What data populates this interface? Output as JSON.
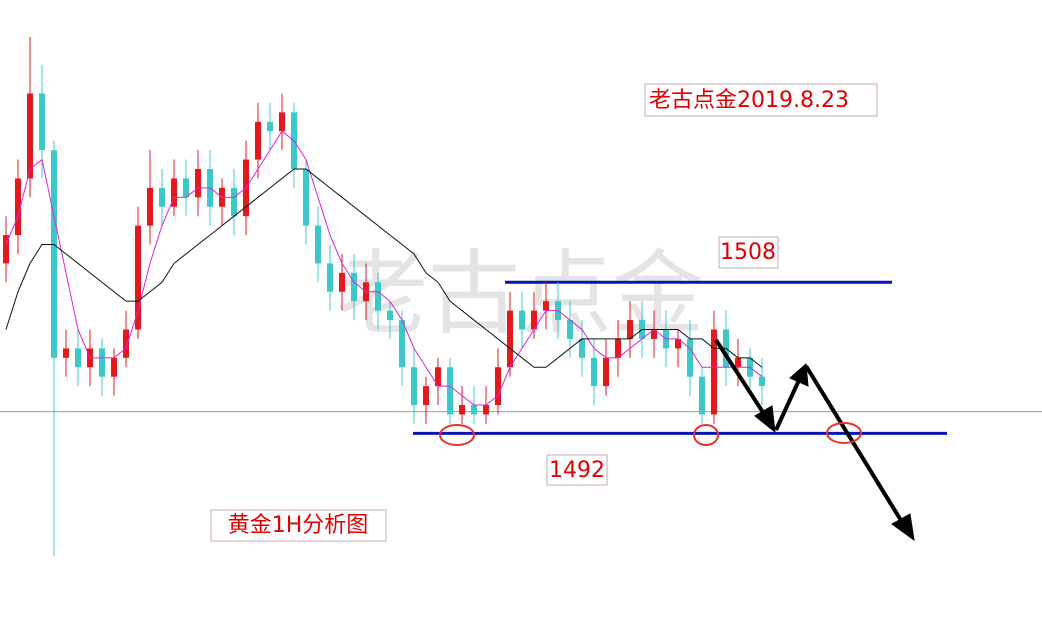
{
  "chart_data": {
    "type": "candlestick",
    "title": "黄金1H分析图",
    "annotations": [
      "老古点金2019.8.23"
    ],
    "watermark": "老古点金",
    "ylim": [
      1471.7,
      1537.9
    ],
    "up_color": "#e31a1c",
    "down_color": "#3cc8c8",
    "open": [
      1510,
      1513,
      1519,
      1528,
      1522,
      1500,
      1501,
      1499,
      1501,
      1498,
      1500,
      1503,
      1514,
      1518,
      1516,
      1519,
      1517,
      1520,
      1516,
      1518,
      1515,
      1521,
      1525,
      1524,
      1526,
      1520,
      1514,
      1510,
      1507,
      1509,
      1506,
      1508,
      1505,
      1504,
      1499,
      1495,
      1497,
      1499,
      1494,
      1495,
      1494,
      1495,
      1499,
      1505,
      1503,
      1505,
      1506,
      1504,
      1502,
      1500,
      1497,
      1500,
      1502,
      1504,
      1502,
      1503,
      1501,
      1502,
      1498,
      1494,
      1503,
      1499,
      1500,
      1498
    ],
    "high": [
      1515,
      1521,
      1534,
      1531,
      1523,
      1503,
      1503,
      1503,
      1502,
      1501,
      1505,
      1516,
      1522,
      1520,
      1521,
      1521,
      1522,
      1522,
      1519,
      1520,
      1523,
      1527,
      1527,
      1528,
      1527,
      1521,
      1516,
      1512,
      1511,
      1511,
      1510,
      1509,
      1506,
      1505,
      1501,
      1498,
      1500,
      1500,
      1497,
      1497,
      1497,
      1501,
      1507,
      1507,
      1507,
      1508,
      1508,
      1506,
      1504,
      1502,
      1502,
      1504,
      1506,
      1506,
      1505,
      1505,
      1503,
      1504,
      1499,
      1505,
      1505,
      1502,
      1501,
      1500
    ],
    "low": [
      1508,
      1511,
      1517,
      1519,
      1479,
      1498,
      1497,
      1497,
      1496,
      1496,
      1499,
      1502,
      1512,
      1514,
      1515,
      1515,
      1515,
      1514,
      1514,
      1513,
      1513,
      1519,
      1522,
      1522,
      1518,
      1512,
      1508,
      1505,
      1505,
      1504,
      1504,
      1503,
      1502,
      1497,
      1493,
      1493,
      1495,
      1493,
      1493,
      1493,
      1493,
      1494,
      1498,
      1501,
      1502,
      1503,
      1502,
      1500,
      1498,
      1495,
      1496,
      1498,
      1500,
      1500,
      1500,
      1499,
      1499,
      1496,
      1493,
      1493,
      1497,
      1497,
      1496,
      1495
    ],
    "close": [
      1513,
      1519,
      1528,
      1522,
      1500,
      1501,
      1499,
      1501,
      1498,
      1500,
      1503,
      1514,
      1518,
      1516,
      1519,
      1517,
      1520,
      1516,
      1518,
      1515,
      1521,
      1525,
      1524,
      1526,
      1520,
      1514,
      1510,
      1507,
      1509,
      1506,
      1508,
      1505,
      1504,
      1499,
      1495,
      1497,
      1499,
      1494,
      1495,
      1494,
      1495,
      1499,
      1505,
      1503,
      1505,
      1506,
      1504,
      1502,
      1500,
      1497,
      1500,
      1502,
      1504,
      1502,
      1503,
      1501,
      1502,
      1498,
      1494,
      1503,
      1499,
      1500,
      1498,
      1497
    ],
    "series": [
      {
        "color": "#e020e0",
        "values": [
          1512,
          1515,
          1520,
          1521,
          1515,
          1509,
          1503,
          1500,
          1500,
          1500,
          1501,
          1505,
          1510,
          1514,
          1517,
          1517,
          1518,
          1518,
          1517,
          1517,
          1518,
          1520,
          1522,
          1524,
          1523,
          1521,
          1517,
          1513,
          1510,
          1508,
          1507,
          1507,
          1506,
          1504,
          1501,
          1499,
          1497,
          1497,
          1496,
          1495,
          1495,
          1496,
          1499,
          1501,
          1503,
          1505,
          1505,
          1504,
          1503,
          1501,
          1500,
          1500,
          1501,
          1502,
          1503,
          1502,
          1502,
          1501,
          1499,
          1499,
          1499,
          1499,
          1499,
          1498
        ]
      },
      {
        "color": "#111111",
        "values": [
          1503,
          1507,
          1510,
          1512,
          1512,
          1511,
          1510,
          1509,
          1508,
          1507,
          1506,
          1506,
          1507,
          1508,
          1510,
          1511,
          1512,
          1513,
          1514,
          1515,
          1516,
          1517,
          1518,
          1519,
          1520,
          1520,
          1519,
          1518,
          1517,
          1516,
          1515,
          1514,
          1513,
          1512,
          1511,
          1509,
          1508,
          1506,
          1505,
          1504,
          1503,
          1502,
          1501,
          1500,
          1499,
          1499,
          1500,
          1501,
          1502,
          1502,
          1502,
          1502,
          1502,
          1503,
          1503,
          1503,
          1503,
          1502,
          1502,
          1501,
          1501,
          1500,
          1500,
          1499
        ]
      }
    ],
    "levels": [
      1508,
      1492
    ],
    "reference_line": 1494.3,
    "level_color": "#0a14b4"
  }
}
